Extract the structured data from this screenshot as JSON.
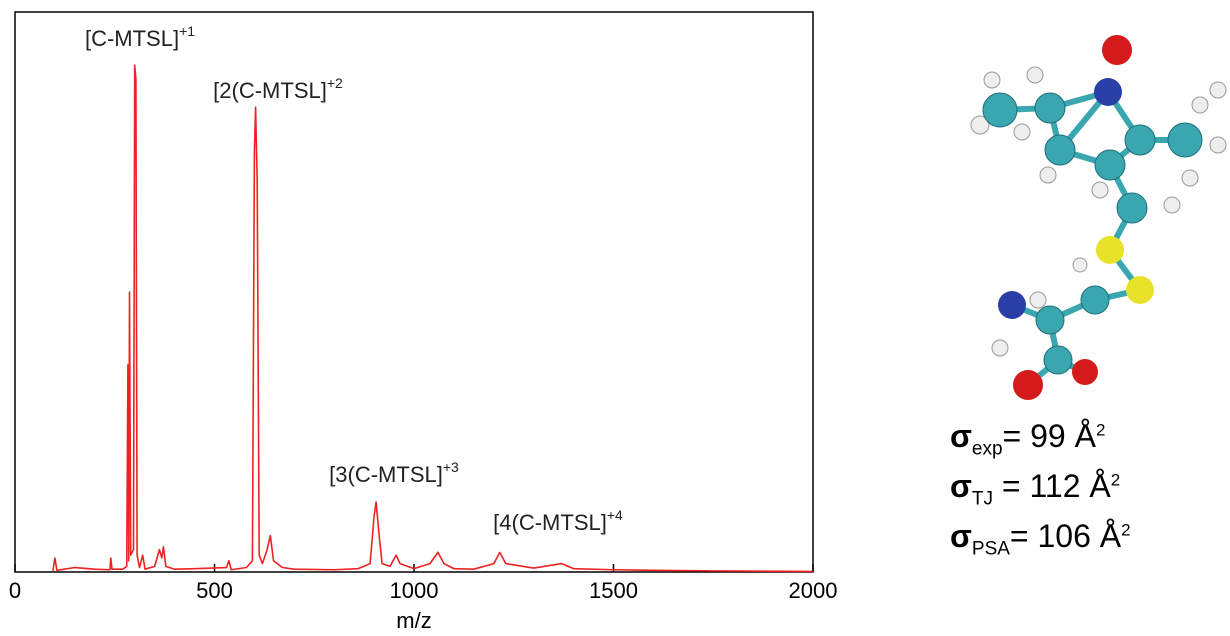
{
  "chart_data": {
    "type": "line",
    "xlabel": "m/z",
    "xlim": [
      0,
      2000
    ],
    "xticks": [
      0,
      500,
      1000,
      1500,
      2000
    ],
    "ylim": [
      0,
      100
    ],
    "color": "#ee2222",
    "x": [
      95,
      100,
      105,
      150,
      200,
      238,
      240,
      243,
      270,
      280,
      283,
      285,
      287,
      290,
      297,
      300,
      303,
      306,
      312,
      320,
      326,
      350,
      362,
      368,
      372,
      378,
      400,
      450,
      530,
      536,
      542,
      580,
      595,
      600,
      603,
      607,
      612,
      620,
      632,
      640,
      648,
      670,
      700,
      800,
      860,
      890,
      900,
      905,
      912,
      920,
      940,
      955,
      965,
      1000,
      1040,
      1060,
      1075,
      1100,
      1150,
      1200,
      1215,
      1230,
      1300,
      1370,
      1400,
      1500,
      1600,
      1750,
      2000
    ],
    "values": [
      0.2,
      2.5,
      0.3,
      0.8,
      0.5,
      0.4,
      2.5,
      0.5,
      0.5,
      1,
      37,
      2,
      50,
      3,
      4,
      90.5,
      88,
      3,
      0.8,
      3,
      0.5,
      1,
      4,
      2.5,
      4.5,
      1,
      0.5,
      0.6,
      0.8,
      2,
      0.4,
      0.8,
      2,
      75,
      83,
      70,
      3,
      1.5,
      4,
      6.5,
      2,
      0.8,
      0.5,
      0.4,
      0.6,
      1.5,
      10,
      12.5,
      7,
      1.5,
      1,
      3,
      1.5,
      0.6,
      1.5,
      3.5,
      1.5,
      0.6,
      0.5,
      1.5,
      3.5,
      1.5,
      0.7,
      1.5,
      0.6,
      0.4,
      0.3,
      0.2,
      0.1
    ],
    "annotations": [
      {
        "text": "[C-MTSL]",
        "sup": "+1"
      },
      {
        "text": "[2(C-MTSL]",
        "sup": "+2"
      },
      {
        "text": "[3(C-MTSL]",
        "sup": "+3"
      },
      {
        "text": "[4(C-MTSL]",
        "sup": "+4"
      }
    ]
  },
  "cross_sections": [
    {
      "symbol": "σ",
      "sub": "exp",
      "text": "= 99 Å",
      "sup": "2"
    },
    {
      "symbol": "σ",
      "sub": "TJ",
      "text": " = 112 Å",
      "sup": "2"
    },
    {
      "symbol": "σ",
      "sub": "PSA",
      "text": "= 106 Å",
      "sup": "2"
    }
  ]
}
